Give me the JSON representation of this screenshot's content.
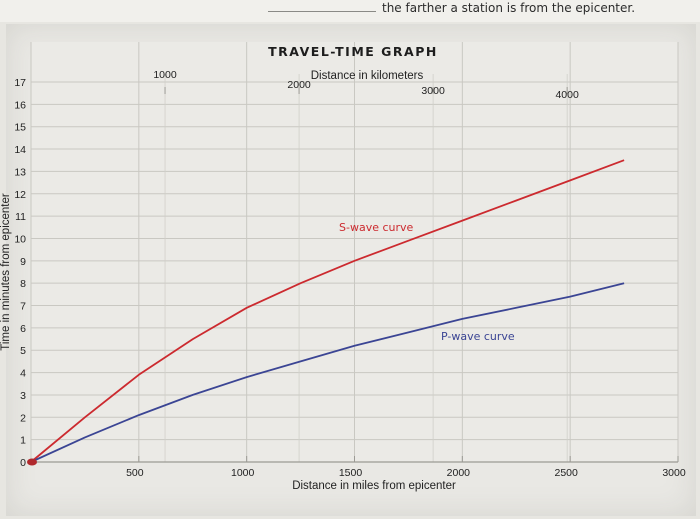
{
  "page": {
    "top_text": "the farther a station is from the epicenter."
  },
  "chart_data": {
    "type": "line",
    "title": "TRAVEL-TIME GRAPH",
    "xlabel": "Distance in miles from epicenter",
    "ylabel": "Time in minutes from epicenter",
    "x2label": "Distance in kilometers",
    "xlim": [
      0,
      3000
    ],
    "ylim": [
      0,
      17
    ],
    "x_ticks": [
      500,
      1000,
      1500,
      2000,
      2500,
      3000
    ],
    "y_ticks": [
      0,
      1,
      2,
      3,
      4,
      5,
      6,
      7,
      8,
      9,
      10,
      11,
      12,
      13,
      14,
      15,
      16,
      17
    ],
    "x2_ticks": [
      1000,
      2000,
      3000,
      4000
    ],
    "grid": true,
    "series": [
      {
        "name": "S-wave curve",
        "color": "#cc2a2f",
        "x": [
          0,
          250,
          500,
          750,
          1000,
          1250,
          1500,
          1750,
          2000,
          2250,
          2500,
          2750
        ],
        "y": [
          0,
          2.0,
          3.9,
          5.5,
          6.9,
          8.0,
          9.0,
          9.9,
          10.8,
          11.7,
          12.6,
          13.5
        ]
      },
      {
        "name": "P-wave curve",
        "color": "#3b4594",
        "x": [
          0,
          250,
          500,
          750,
          1000,
          1250,
          1500,
          1750,
          2000,
          2250,
          2500,
          2750
        ],
        "y": [
          0,
          1.1,
          2.1,
          3.0,
          3.8,
          4.5,
          5.2,
          5.8,
          6.4,
          6.9,
          7.4,
          8.0
        ]
      }
    ]
  }
}
